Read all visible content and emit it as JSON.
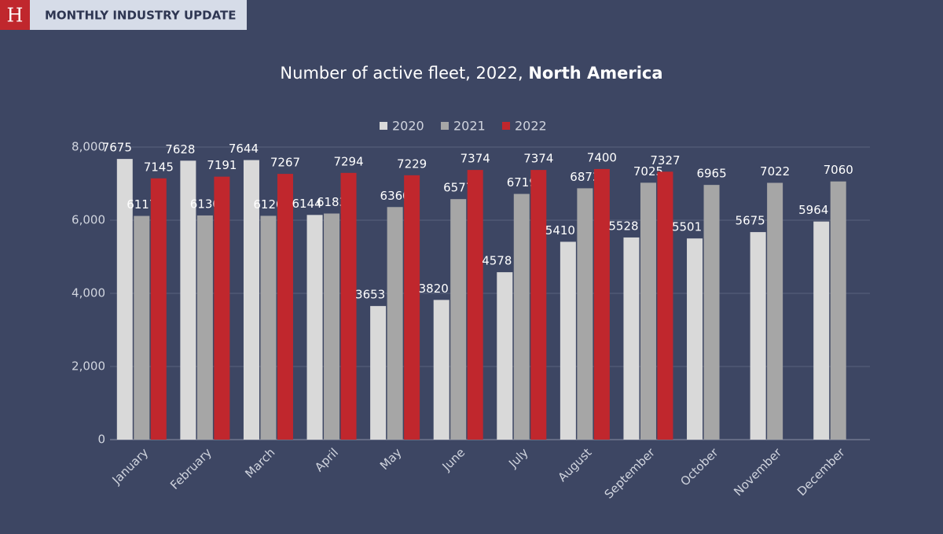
{
  "header": {
    "logo": "H",
    "title": "MONTHLY INDUSTRY UPDATE"
  },
  "chart_data": {
    "type": "bar",
    "title": "Number of active fleet, 2022,",
    "title_highlight": "North America",
    "categories": [
      "January",
      "February",
      "March",
      "April",
      "May",
      "June",
      "July",
      "August",
      "September",
      "October",
      "November",
      "December"
    ],
    "series": [
      {
        "name": "2020",
        "color": "#d9d9d9",
        "values": [
          7675,
          7628,
          7644,
          6144,
          3653,
          3820,
          4578,
          5410,
          5528,
          5501,
          5675,
          5964
        ]
      },
      {
        "name": "2021",
        "color": "#a6a6a6",
        "values": [
          6117,
          6130,
          6120,
          6183,
          6360,
          6577,
          6719,
          6873,
          7025,
          6965,
          7022,
          7060
        ]
      },
      {
        "name": "2022",
        "color": "#c0272d",
        "values": [
          7145,
          7191,
          7267,
          7294,
          7229,
          7374,
          7374,
          7400,
          7327,
          null,
          null,
          null
        ]
      }
    ],
    "ylim": [
      0,
      8000
    ],
    "yticks": [
      0,
      {
        "value": 2000,
        "label": "2,000"
      },
      {
        "value": 4000,
        "label": "4,000"
      },
      {
        "value": 6000,
        "label": "6,000"
      },
      {
        "value": 8000,
        "label": "8,000"
      }
    ],
    "grid": true,
    "legend": "top",
    "data_labels": true
  }
}
